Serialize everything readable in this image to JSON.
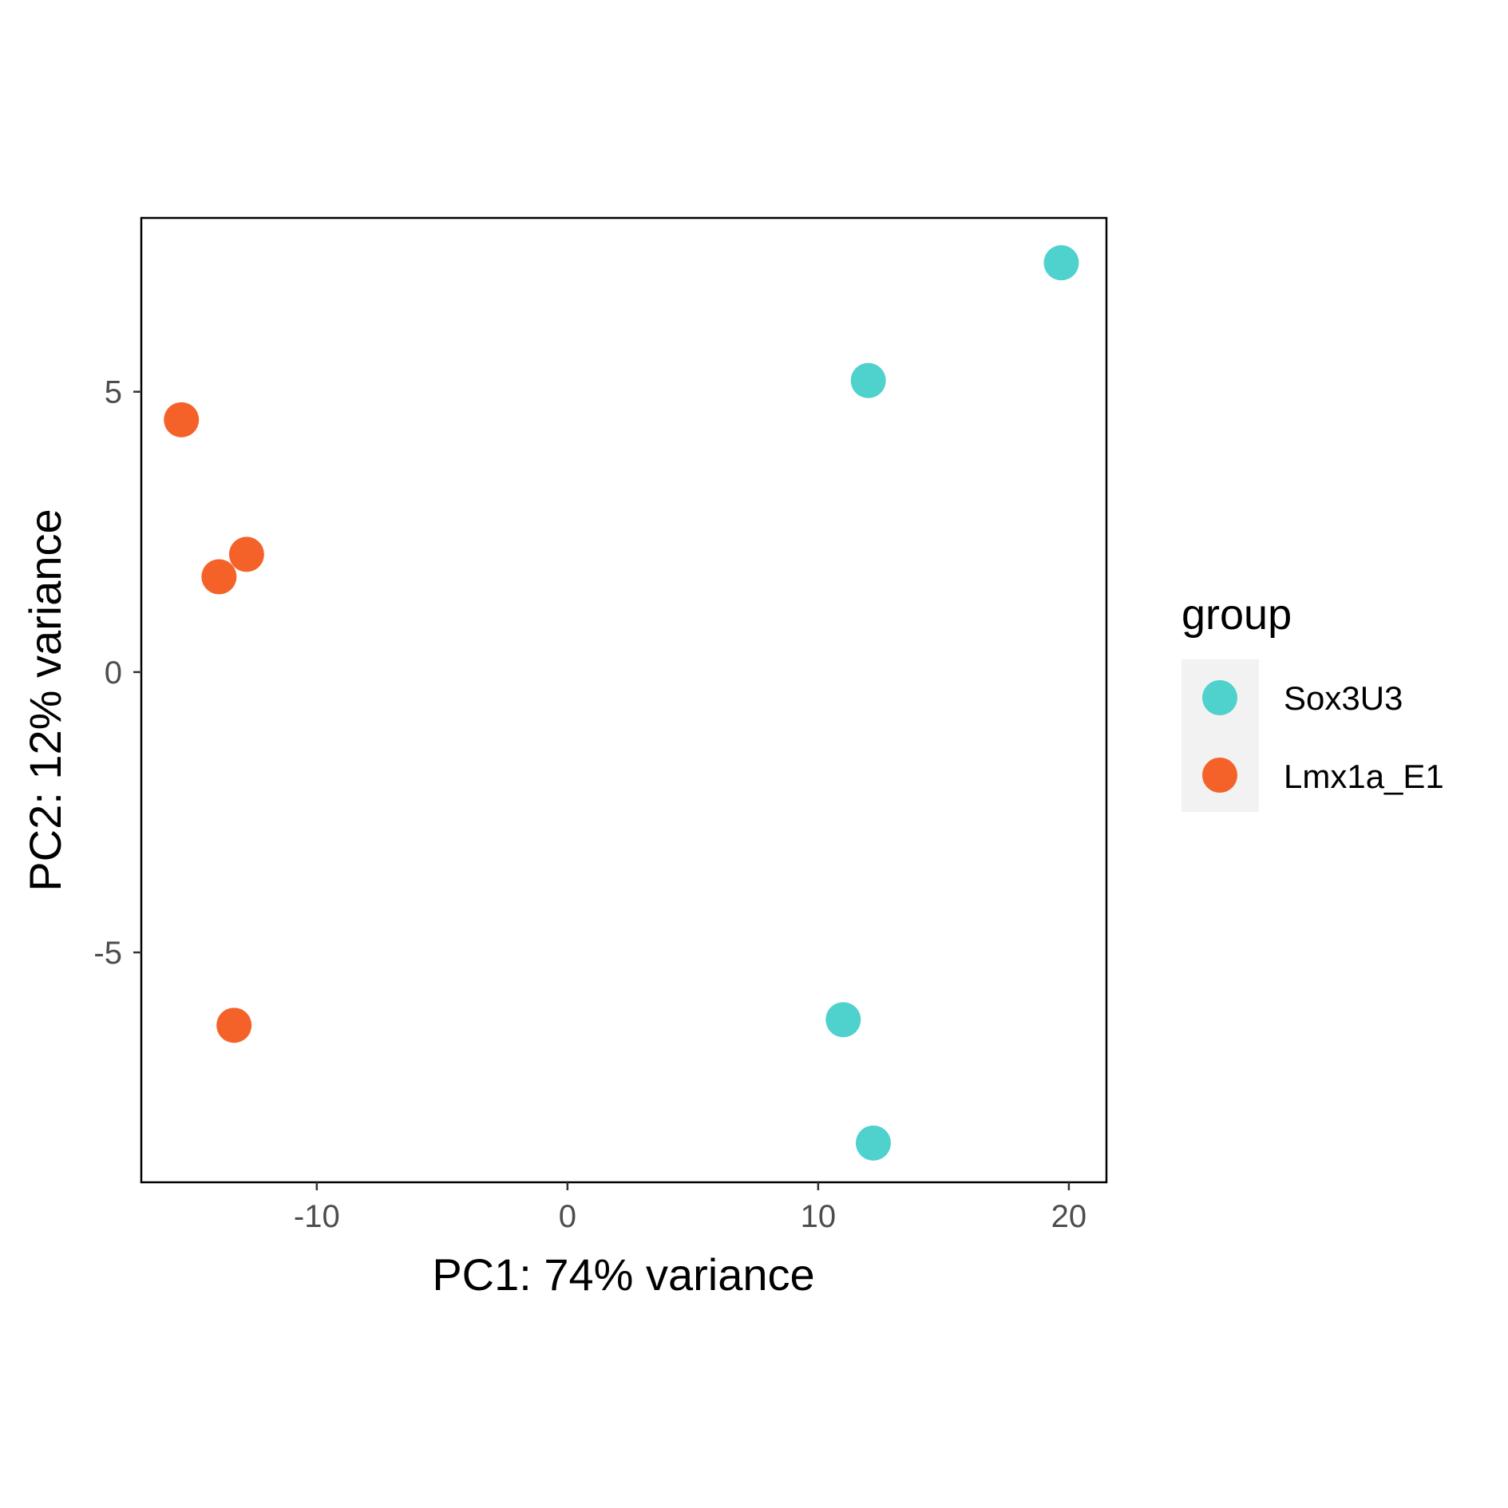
{
  "chart_data": {
    "type": "scatter",
    "title": "",
    "xlabel": "PC1: 74% variance",
    "ylabel": "PC2: 12% variance",
    "xlim": [
      -17,
      21.5
    ],
    "ylim": [
      -9.1,
      8.1
    ],
    "x_ticks": [
      -10,
      0,
      10,
      20
    ],
    "y_ticks": [
      -5,
      0,
      5
    ],
    "x_tick_labels": [
      "-10",
      "0",
      "10",
      "20"
    ],
    "y_tick_labels": [
      "-5",
      "0",
      "5"
    ],
    "grid": false,
    "legend_position": "right",
    "legend_title": "group",
    "series": [
      {
        "name": "Sox3U3",
        "color": "#4fd1cd",
        "points": [
          {
            "x": 19.7,
            "y": 7.3
          },
          {
            "x": 12.0,
            "y": 5.2
          },
          {
            "x": 11.0,
            "y": -6.2
          },
          {
            "x": 12.2,
            "y": -8.4
          }
        ]
      },
      {
        "name": "Lmx1a_E1",
        "color": "#f4622a",
        "points": [
          {
            "x": -15.4,
            "y": 4.5
          },
          {
            "x": -12.8,
            "y": 2.1
          },
          {
            "x": -13.9,
            "y": 1.7
          },
          {
            "x": -13.3,
            "y": -6.3
          }
        ]
      }
    ]
  }
}
